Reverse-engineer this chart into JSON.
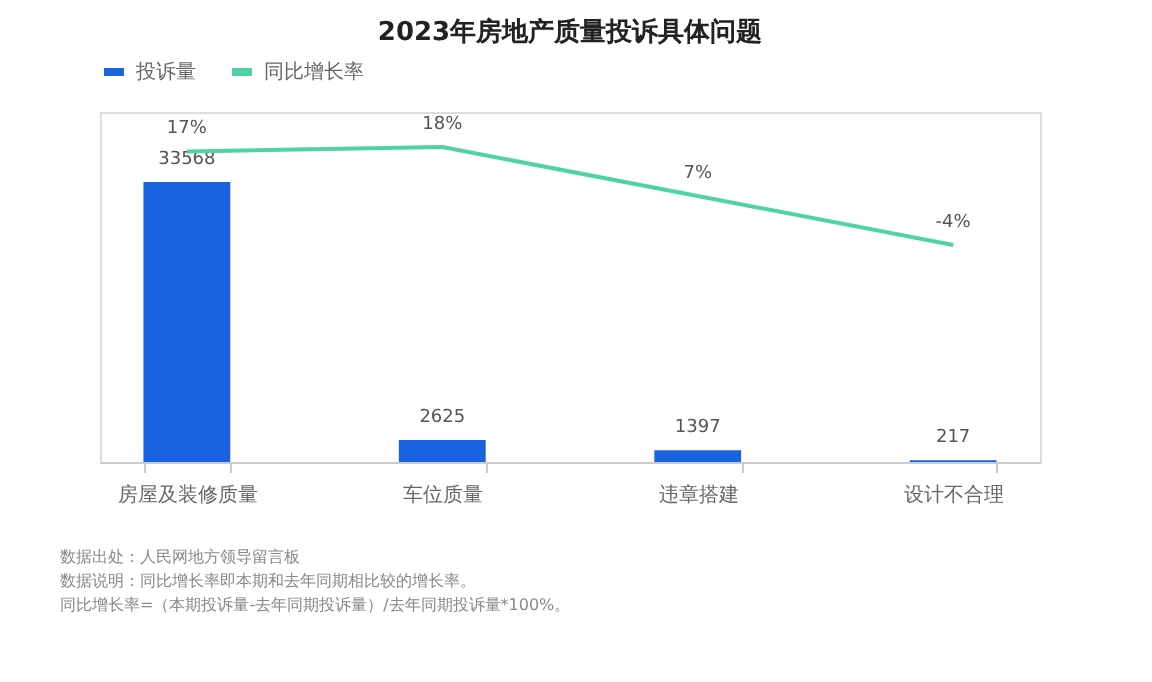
{
  "chart_data": {
    "type": "bar",
    "title": "2023年房地产质量投诉具体问题",
    "categories": [
      "房屋及装修质量",
      "车位质量",
      "违章搭建",
      "设计不合理"
    ],
    "series": [
      {
        "name": "投诉量",
        "color": "#1a63e0",
        "values": [
          33568,
          2625,
          1397,
          217
        ],
        "value_labels": [
          "33568",
          "2625",
          "1397",
          "217"
        ]
      },
      {
        "name": "同比增长率",
        "type": "line",
        "axis": "y2",
        "color": "#4ed4a4",
        "values": [
          17,
          18,
          7,
          -4
        ],
        "value_labels": [
          "17%",
          "18%",
          "7%",
          "-4%"
        ]
      }
    ],
    "legend": "top",
    "marker": "none",
    "line_style": "solid",
    "annotations": [
      "数据出处：人民网地方领导留言板",
      "数据说明：同比增长率即本期和去年同期相比较的增长率。",
      "同比增长率=（本期投诉量-去年同期投诉量）/去年同期投诉量*100%。"
    ]
  }
}
